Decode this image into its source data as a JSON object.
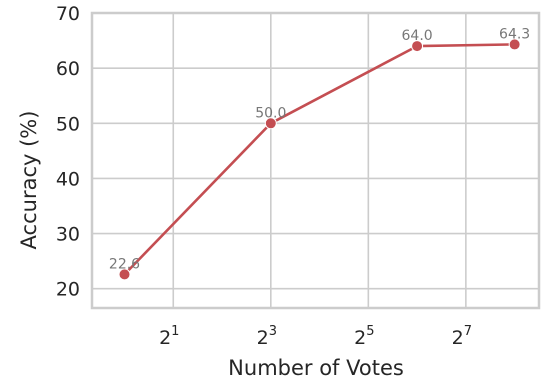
{
  "chart_data": {
    "type": "line",
    "title": "",
    "xlabel": "Number of Votes",
    "ylabel": "Accuracy (%)",
    "x_scale": "log2",
    "x_ticks": [
      {
        "value": 2,
        "base": "2",
        "exp": "1"
      },
      {
        "value": 8,
        "base": "2",
        "exp": "3"
      },
      {
        "value": 32,
        "base": "2",
        "exp": "5"
      },
      {
        "value": 128,
        "base": "2",
        "exp": "7"
      }
    ],
    "y_ticks": [
      20,
      30,
      40,
      50,
      60,
      70
    ],
    "ylim": [
      16.5,
      70
    ],
    "xlim": [
      0.63,
      362
    ],
    "grid": true,
    "series": [
      {
        "color": "#c44e52",
        "x": [
          1,
          8,
          64,
          256
        ],
        "y": [
          22.6,
          50.0,
          64.0,
          64.3
        ],
        "labels": [
          "22.6",
          "50.0",
          "64.0",
          "64.3"
        ]
      }
    ]
  }
}
